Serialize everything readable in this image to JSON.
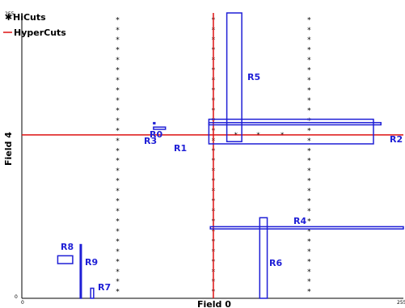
{
  "figure": {
    "xlabel": "Field 0",
    "ylabel": "Field 4",
    "tick_labels": {
      "x_min": "0",
      "x_max": "255",
      "y_min": "0",
      "y_max": "255"
    }
  },
  "legend": {
    "hicuts": {
      "label": "HiCuts",
      "symbol": "asterisk-icon"
    },
    "hypercuts": {
      "label": "HyperCuts",
      "color": "#dd1111"
    }
  },
  "colors": {
    "rules": "#1f1fd6",
    "hypercuts": "#dd1111",
    "hicuts": "#000000"
  },
  "rules": [
    {
      "label": "R0",
      "x0": 125,
      "x1": 240,
      "y0": 155,
      "y1": 157
    },
    {
      "label": "R1",
      "x0": 88,
      "x1": 96,
      "y0": 151,
      "y1": 153
    },
    {
      "label": "R2",
      "x0": 125,
      "x1": 235,
      "y0": 138,
      "y1": 160
    },
    {
      "label": "R3",
      "x0": 88,
      "x1": 89,
      "y0": 156,
      "y1": 157
    },
    {
      "label": "R4",
      "x0": 126,
      "x1": 255,
      "y0": 62,
      "y1": 64
    },
    {
      "label": "R5",
      "x0": 137,
      "x1": 147,
      "y0": 140,
      "y1": 255
    },
    {
      "label": "R6",
      "x0": 159,
      "x1": 164,
      "y0": 0,
      "y1": 72
    },
    {
      "label": "R7",
      "x0": 46,
      "x1": 48,
      "y0": 0,
      "y1": 9
    },
    {
      "label": "R8",
      "x0": 24,
      "x1": 34,
      "y0": 31,
      "y1": 38
    },
    {
      "label": "R9",
      "x0": 39,
      "x1": 39,
      "y0": 0,
      "y1": 48
    }
  ],
  "hicuts_cuts_x": [
    64,
    128,
    192
  ],
  "hicuts_star_rows": [
    6,
    15,
    24,
    33,
    42,
    51,
    60,
    69,
    78,
    87,
    96,
    105,
    114,
    123,
    132,
    141,
    150,
    159,
    168,
    177,
    186,
    195,
    204,
    213,
    222,
    231,
    240,
    249
  ],
  "hypercuts_cuts": {
    "x": 128,
    "y": 146
  },
  "row_stars_y": 146,
  "row_stars_x": [
    143,
    158,
    174
  ]
}
